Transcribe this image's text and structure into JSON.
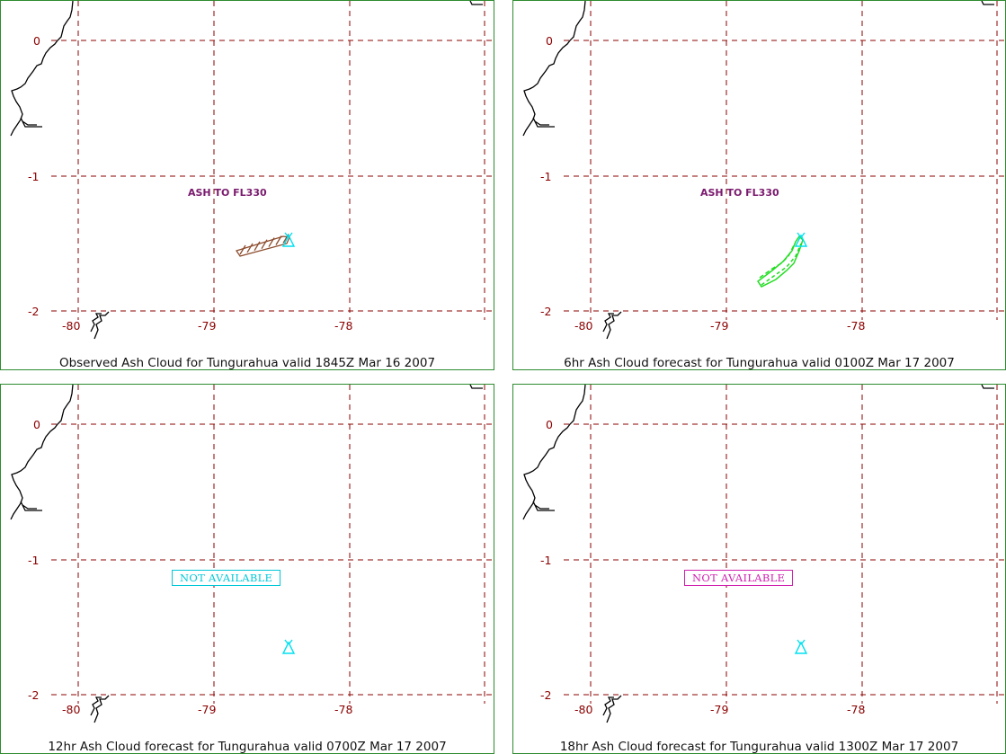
{
  "panels": [
    {
      "id": "observed",
      "caption": "Observed Ash Cloud for Tungurahua valid 1845Z Mar 16 2007",
      "cloud_label": "ASH TO FL330",
      "cloud_style": "hatched-brown",
      "not_available": null
    },
    {
      "id": "fcst-6hr",
      "caption": "6hr Ash Cloud forecast for Tungurahua valid 0100Z Mar 17 2007",
      "cloud_label": "ASH TO FL330",
      "cloud_style": "outline-green",
      "not_available": null
    },
    {
      "id": "fcst-12hr",
      "caption": "12hr Ash Cloud forecast for Tungurahua valid 0700Z Mar 17 2007",
      "cloud_label": "",
      "cloud_style": "none",
      "not_available": {
        "text": "NOT AVAILABLE",
        "color": "#00c8d8"
      }
    },
    {
      "id": "fcst-18hr",
      "caption": "18hr Ash Cloud forecast for Tungurahua valid 1300Z Mar 17 2007",
      "cloud_label": "",
      "cloud_style": "none",
      "not_available": {
        "text": "NOT AVAILABLE",
        "color": "#d020b0"
      }
    }
  ],
  "map": {
    "lat_labels": [
      "0",
      "-1",
      "-2"
    ],
    "lon_labels": [
      "-80",
      "-79",
      "-78"
    ],
    "volcano_icon": "volcano-triangle-icon",
    "colors": {
      "grid": "#8b0000",
      "coast": "#000000",
      "volcano": "#00e0f0",
      "border": "#2e8b2e",
      "observed_cloud": "#8b4a2a",
      "forecast_cloud": "#22dd22",
      "ash_label": "#7a1a6e"
    }
  }
}
